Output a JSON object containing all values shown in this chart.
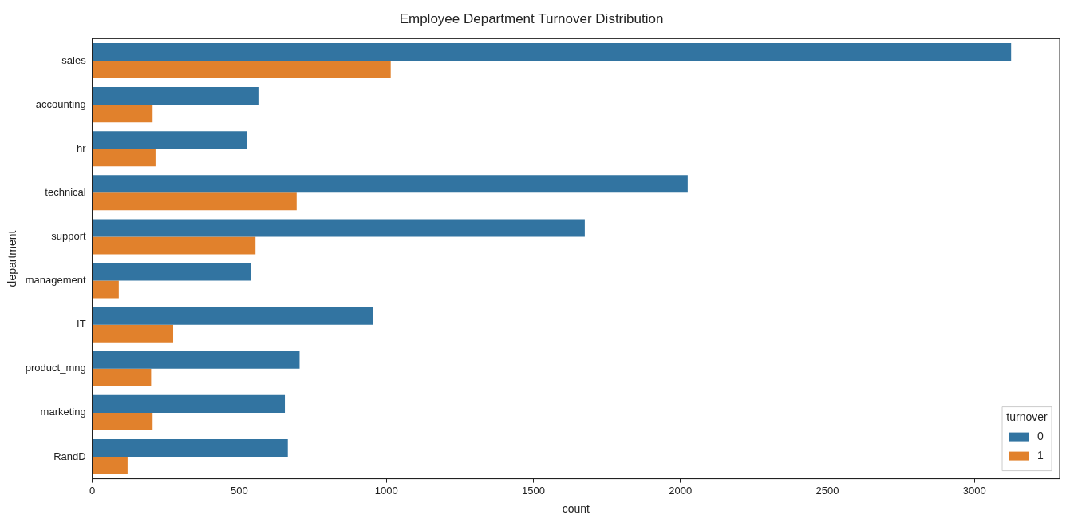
{
  "chart_data": {
    "type": "bar",
    "orientation": "horizontal",
    "title": "Employee Department Turnover Distribution",
    "xlabel": "count",
    "ylabel": "department",
    "legend_title": "turnover",
    "legend": "bottom right",
    "grid": false,
    "categories": [
      "sales",
      "accounting",
      "hr",
      "technical",
      "support",
      "management",
      "IT",
      "product_mng",
      "marketing",
      "RandD"
    ],
    "xlim": [
      0,
      3290
    ],
    "xticks": [
      0,
      500,
      1000,
      1500,
      2000,
      2500,
      3000
    ],
    "series": [
      {
        "name": "0",
        "color": "#3274a1",
        "values": [
          3125,
          565,
          525,
          2025,
          1675,
          540,
          955,
          705,
          655,
          665
        ]
      },
      {
        "name": "1",
        "color": "#e1812c",
        "values": [
          1015,
          205,
          215,
          695,
          555,
          90,
          275,
          200,
          205,
          120
        ]
      }
    ]
  }
}
